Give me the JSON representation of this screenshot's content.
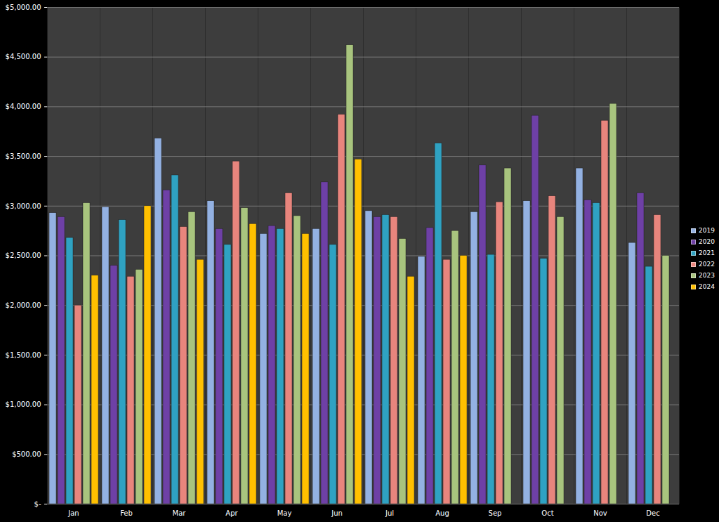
{
  "chart_data": {
    "type": "bar",
    "categories": [
      "Jan",
      "Feb",
      "Mar",
      "Apr",
      "May",
      "Jun",
      "Jul",
      "Aug",
      "Sep",
      "Oct",
      "Nov",
      "Dec"
    ],
    "series": [
      {
        "name": "2019",
        "color": "#93b1e2",
        "values": [
          2930,
          2990,
          3680,
          3050,
          2720,
          2770,
          2950,
          2490,
          2940,
          3050,
          3380,
          2630
        ]
      },
      {
        "name": "2020",
        "color": "#6e40a6",
        "values": [
          2890,
          2400,
          3160,
          2770,
          2800,
          3240,
          2890,
          2780,
          3410,
          3910,
          3060,
          3130
        ]
      },
      {
        "name": "2021",
        "color": "#2fa2c2",
        "values": [
          2680,
          2860,
          3310,
          2610,
          2770,
          2610,
          2910,
          3630,
          2510,
          2470,
          3030,
          2390
        ]
      },
      {
        "name": "2022",
        "color": "#e8857d",
        "values": [
          2000,
          2290,
          2790,
          3450,
          3130,
          3920,
          2890,
          2460,
          3040,
          3100,
          3860,
          2910
        ]
      },
      {
        "name": "2023",
        "color": "#a8c47e",
        "values": [
          3030,
          2360,
          2940,
          2980,
          2900,
          4620,
          2670,
          2750,
          3380,
          2890,
          4030,
          2500
        ]
      },
      {
        "name": "2024",
        "color": "#ffc000",
        "values": [
          2300,
          3000,
          2460,
          2820,
          2720,
          3470,
          2290,
          2500,
          null,
          null,
          null,
          null
        ]
      }
    ],
    "ylim": [
      0,
      5000
    ],
    "yticks": [
      {
        "value": 0,
        "label": "$-"
      },
      {
        "value": 500,
        "label": "$500.00"
      },
      {
        "value": 1000,
        "label": "$1,000.00"
      },
      {
        "value": 1500,
        "label": "$1,500.00"
      },
      {
        "value": 2000,
        "label": "$2,000.00"
      },
      {
        "value": 2500,
        "label": "$2,500.00"
      },
      {
        "value": 3000,
        "label": "$3,000.00"
      },
      {
        "value": 3500,
        "label": "$3,500.00"
      },
      {
        "value": 4000,
        "label": "$4,000.00"
      },
      {
        "value": 4500,
        "label": "$4,500.00"
      },
      {
        "value": 5000,
        "label": "$5,000.00"
      }
    ],
    "grid": true,
    "legend": "right"
  }
}
